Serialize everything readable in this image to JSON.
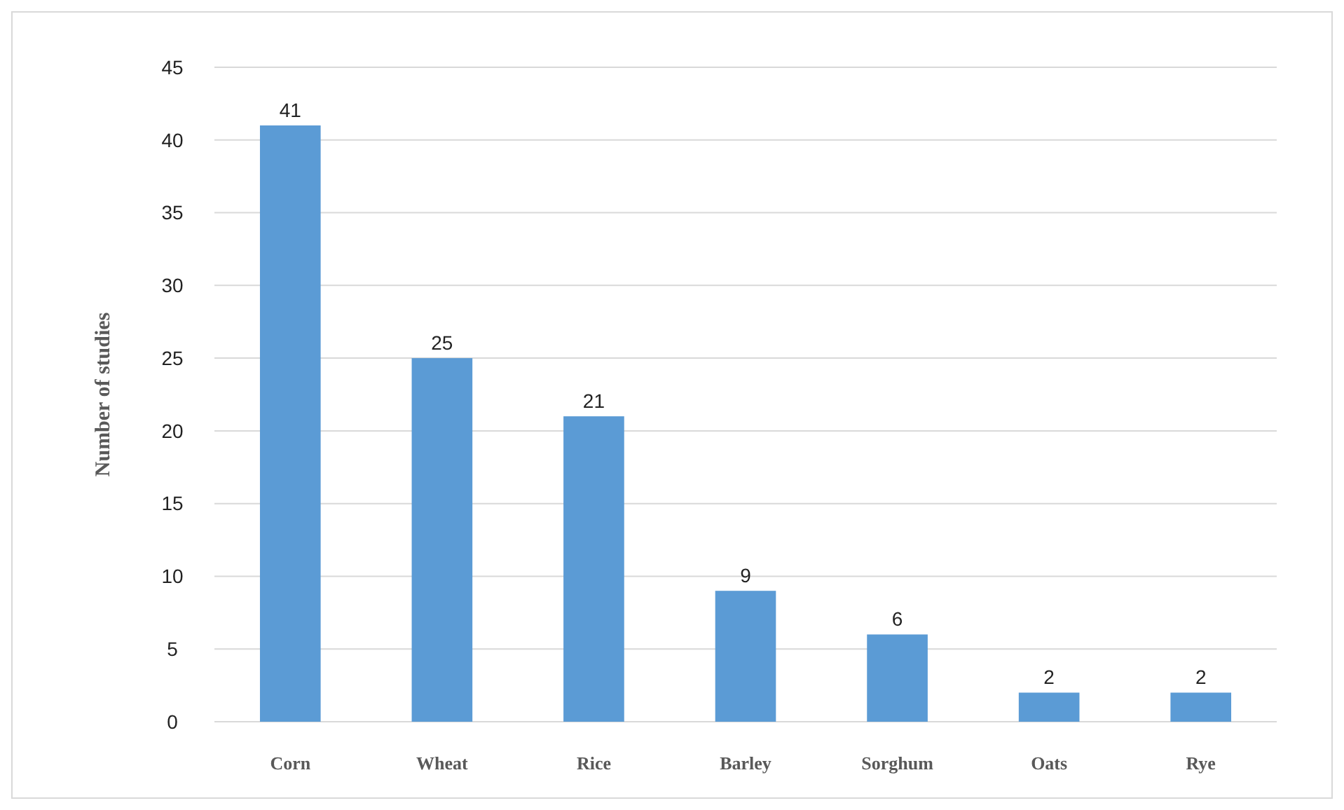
{
  "chart_data": {
    "type": "bar",
    "ylabel": "Number of studies",
    "categories": [
      "Corn",
      "Wheat",
      "Rice",
      "Barley",
      "Sorghum",
      "Oats",
      "Rye"
    ],
    "values": [
      41,
      25,
      21,
      9,
      6,
      2,
      2
    ],
    "color": "#5b9bd5",
    "ylim": [
      0,
      45
    ],
    "yticks": [
      0,
      5,
      10,
      15,
      20,
      25,
      30,
      35,
      40,
      45
    ],
    "grid": "y",
    "data_labels": true
  }
}
